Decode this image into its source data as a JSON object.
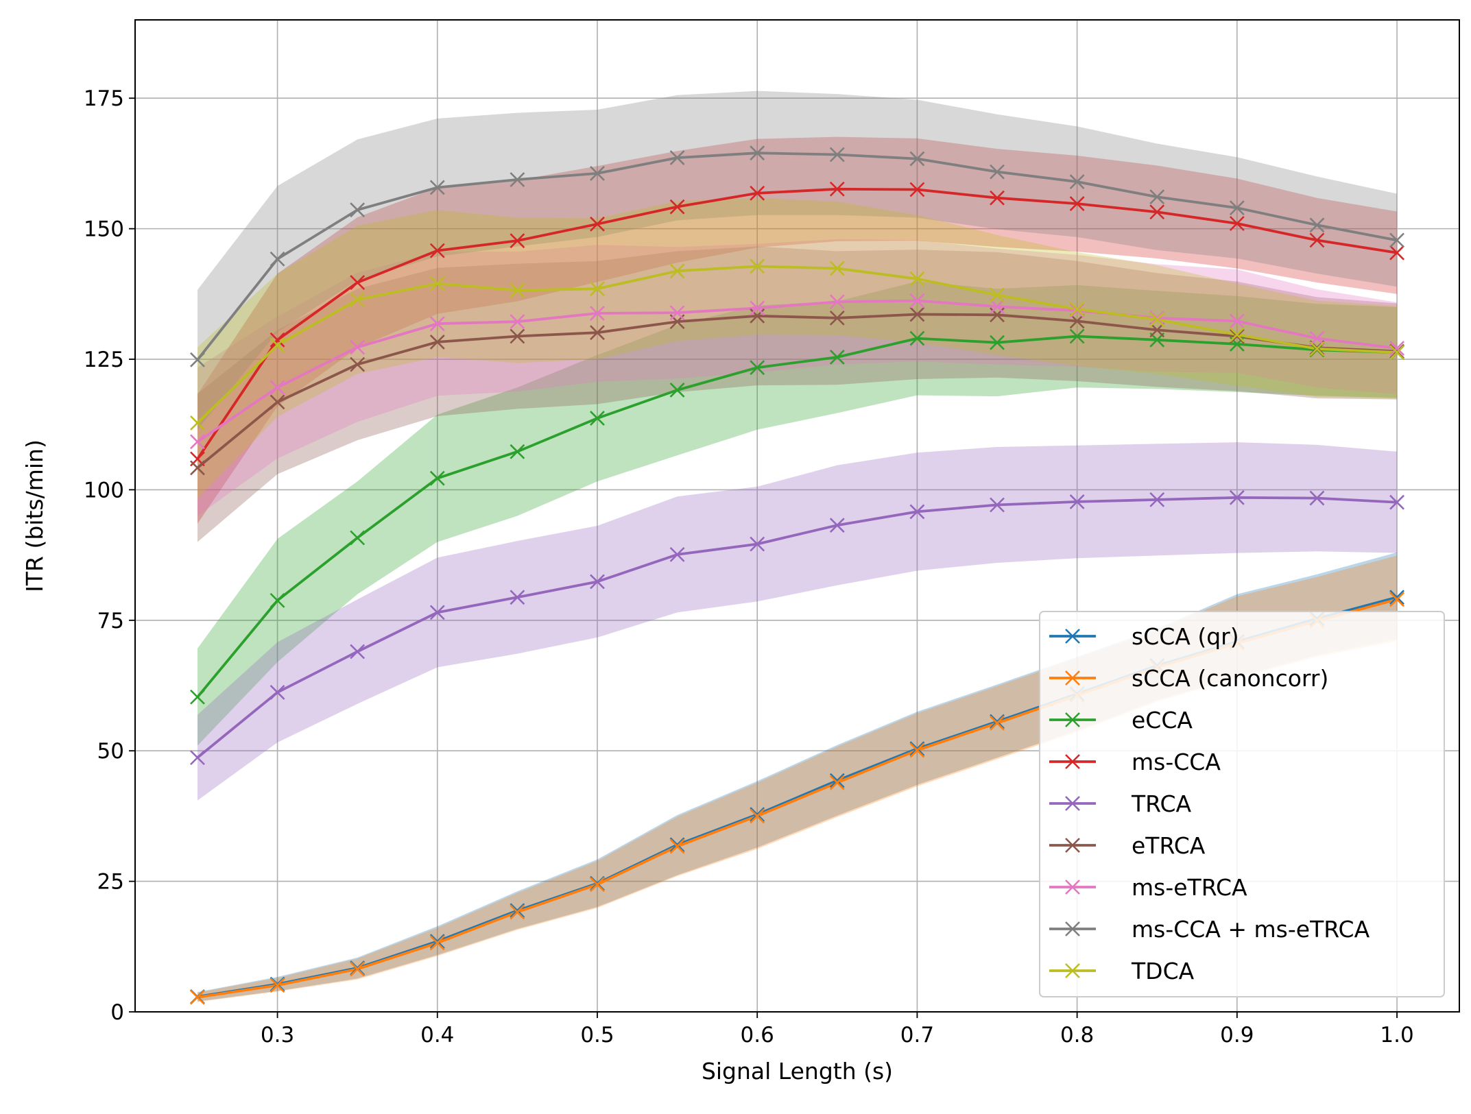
{
  "chart_data": {
    "type": "line",
    "title": "",
    "xlabel": "Signal Length (s)",
    "ylabel": "ITR (bits/min)",
    "xlim": [
      0.211,
      1.039
    ],
    "ylim": [
      0,
      190
    ],
    "xticks": [
      0.3,
      0.4,
      0.5,
      0.6,
      0.7,
      0.8,
      0.9,
      1.0
    ],
    "xtick_labels": [
      "0.3",
      "0.4",
      "0.5",
      "0.6",
      "0.7",
      "0.8",
      "0.9",
      "1.0"
    ],
    "yticks": [
      0,
      25,
      50,
      75,
      100,
      125,
      150,
      175
    ],
    "ytick_labels": [
      "0",
      "25",
      "50",
      "75",
      "100",
      "125",
      "150",
      "175"
    ],
    "grid": true,
    "legend_position": "lower-right",
    "marker": "x",
    "shaded_band": "band around each series",
    "x": [
      0.25,
      0.3,
      0.35,
      0.4,
      0.45,
      0.5,
      0.55,
      0.6,
      0.65,
      0.7,
      0.75,
      0.8,
      0.85,
      0.9,
      0.95,
      1.0
    ],
    "series": [
      {
        "name": "sCCA (qr)",
        "color": "#1f77b4",
        "values": [
          2.9,
          5.3,
          8.4,
          13.5,
          19.4,
          24.6,
          32.0,
          37.8,
          44.3,
          50.4,
          55.6,
          60.9,
          66.3,
          70.9,
          75.3,
          79.4
        ],
        "lower": [
          2.0,
          4.0,
          6.4,
          10.9,
          15.9,
          20.1,
          26.2,
          31.5,
          37.6,
          43.5,
          48.7,
          53.9,
          59.7,
          64.2,
          68.3,
          71.4
        ],
        "upper": [
          3.8,
          6.7,
          10.4,
          16.4,
          23.1,
          29.2,
          37.7,
          44.2,
          51.1,
          57.5,
          62.7,
          68.0,
          73.4,
          80.0,
          83.8,
          88.0
        ]
      },
      {
        "name": "sCCA (canoncorr)",
        "color": "#ff7f0e",
        "values": [
          2.8,
          5.1,
          8.2,
          13.2,
          19.1,
          24.4,
          31.7,
          37.5,
          43.9,
          50.1,
          55.3,
          60.6,
          66.0,
          70.6,
          74.9,
          79.0
        ],
        "lower": [
          1.9,
          3.9,
          6.2,
          10.7,
          15.7,
          19.9,
          26.0,
          31.2,
          37.3,
          43.2,
          48.4,
          53.6,
          59.4,
          63.9,
          68.0,
          71.0
        ],
        "upper": [
          3.7,
          6.5,
          10.2,
          16.1,
          22.8,
          28.9,
          37.4,
          43.9,
          50.8,
          57.2,
          62.4,
          67.7,
          73.1,
          79.6,
          83.3,
          87.4
        ]
      },
      {
        "name": "eCCA",
        "color": "#2ca02c",
        "values": [
          60.3,
          78.8,
          90.8,
          102.2,
          107.3,
          113.7,
          119.1,
          123.4,
          125.4,
          129.0,
          128.2,
          129.4,
          128.7,
          127.9,
          126.8,
          126.3
        ],
        "lower": [
          51.0,
          67.0,
          80.0,
          90.0,
          95.0,
          101.6,
          106.6,
          111.5,
          114.7,
          118.1,
          117.9,
          119.6,
          119.3,
          118.7,
          118.0,
          117.6
        ],
        "upper": [
          69.6,
          90.6,
          101.6,
          114.4,
          119.6,
          125.8,
          131.6,
          135.3,
          136.1,
          139.9,
          138.5,
          139.2,
          138.1,
          137.1,
          135.6,
          135.0
        ]
      },
      {
        "name": "ms-CCA",
        "color": "#d62728",
        "values": [
          105.9,
          128.7,
          139.7,
          145.8,
          147.7,
          150.9,
          154.2,
          156.8,
          157.6,
          157.5,
          155.9,
          154.8,
          153.2,
          151.0,
          147.8,
          145.4
        ],
        "lower": [
          93.5,
          116.0,
          127.2,
          133.7,
          136.1,
          139.8,
          143.5,
          146.4,
          147.6,
          147.7,
          146.5,
          145.6,
          144.3,
          142.4,
          139.7,
          137.5
        ],
        "upper": [
          118.3,
          141.4,
          152.2,
          157.9,
          159.3,
          162.0,
          164.9,
          167.2,
          167.6,
          167.3,
          165.3,
          164.0,
          162.1,
          159.6,
          155.9,
          153.3
        ]
      },
      {
        "name": "TRCA",
        "color": "#9467bd",
        "values": [
          48.7,
          61.2,
          69.0,
          76.5,
          79.4,
          82.4,
          87.6,
          89.6,
          93.2,
          95.8,
          97.1,
          97.7,
          98.1,
          98.5,
          98.4,
          97.6
        ],
        "lower": [
          40.5,
          51.6,
          59.0,
          66.0,
          68.6,
          71.7,
          76.5,
          78.6,
          81.7,
          84.5,
          86.0,
          86.9,
          87.4,
          87.9,
          88.2,
          87.9
        ],
        "upper": [
          56.9,
          70.8,
          79.0,
          87.0,
          90.2,
          93.1,
          98.7,
          100.6,
          104.7,
          107.1,
          108.2,
          108.5,
          108.8,
          109.1,
          108.6,
          107.3
        ]
      },
      {
        "name": "eTRCA",
        "color": "#8c564b",
        "values": [
          104.2,
          116.8,
          124.0,
          128.3,
          129.4,
          130.1,
          132.2,
          133.3,
          132.9,
          133.6,
          133.5,
          132.3,
          130.6,
          129.4,
          127.2,
          126.5
        ],
        "lower": [
          90.0,
          103.0,
          109.5,
          114.1,
          115.5,
          116.4,
          118.7,
          120.0,
          120.1,
          121.2,
          121.5,
          120.8,
          119.7,
          118.9,
          117.5,
          117.3
        ],
        "upper": [
          118.4,
          130.6,
          138.5,
          142.5,
          143.3,
          143.8,
          145.7,
          146.6,
          145.7,
          146.0,
          145.5,
          143.8,
          141.5,
          139.9,
          136.9,
          135.7
        ]
      },
      {
        "name": "ms-eTRCA",
        "color": "#e377c2",
        "values": [
          109.2,
          119.6,
          127.3,
          131.8,
          132.2,
          133.8,
          133.9,
          134.8,
          136.0,
          136.2,
          135.1,
          134.3,
          132.9,
          132.3,
          129.0,
          127.1
        ],
        "lower": [
          95.0,
          106.0,
          113.0,
          118.0,
          118.8,
          120.7,
          121.3,
          122.5,
          124.0,
          124.6,
          124.0,
          123.6,
          122.6,
          122.4,
          119.6,
          118.3
        ],
        "upper": [
          123.4,
          133.2,
          141.6,
          145.6,
          145.6,
          146.9,
          146.5,
          147.1,
          148.0,
          147.8,
          146.2,
          145.0,
          143.2,
          142.2,
          138.4,
          135.9
        ]
      },
      {
        "name": "ms-CCA + ms-eTRCA",
        "color": "#7f7f7f",
        "values": [
          124.9,
          144.2,
          153.6,
          157.9,
          159.4,
          160.6,
          163.6,
          164.5,
          164.2,
          163.4,
          160.9,
          159.0,
          156.1,
          154.0,
          150.7,
          147.8
        ],
        "lower": [
          111.5,
          130.2,
          140.1,
          144.7,
          146.6,
          148.4,
          151.6,
          152.6,
          152.6,
          152.1,
          149.9,
          148.4,
          145.9,
          144.3,
          141.4,
          138.9
        ],
        "upper": [
          138.3,
          158.2,
          167.1,
          171.1,
          172.2,
          172.8,
          175.6,
          176.4,
          175.8,
          174.7,
          171.9,
          169.6,
          166.3,
          163.7,
          160.0,
          156.7
        ]
      },
      {
        "name": "TDCA",
        "color": "#bcbd22",
        "values": [
          112.8,
          127.7,
          136.4,
          139.5,
          138.2,
          138.5,
          141.9,
          142.8,
          142.4,
          140.4,
          137.3,
          134.6,
          132.6,
          129.7,
          127.0,
          126.3
        ],
        "lower": [
          98.3,
          114.0,
          122.2,
          125.4,
          124.3,
          125.0,
          128.5,
          129.7,
          129.6,
          128.2,
          125.8,
          123.7,
          122.2,
          119.9,
          117.8,
          117.4
        ],
        "upper": [
          127.3,
          141.4,
          150.6,
          153.6,
          152.1,
          152.0,
          155.3,
          155.9,
          155.2,
          152.6,
          148.8,
          145.5,
          143.0,
          139.5,
          136.2,
          135.2
        ]
      }
    ]
  }
}
